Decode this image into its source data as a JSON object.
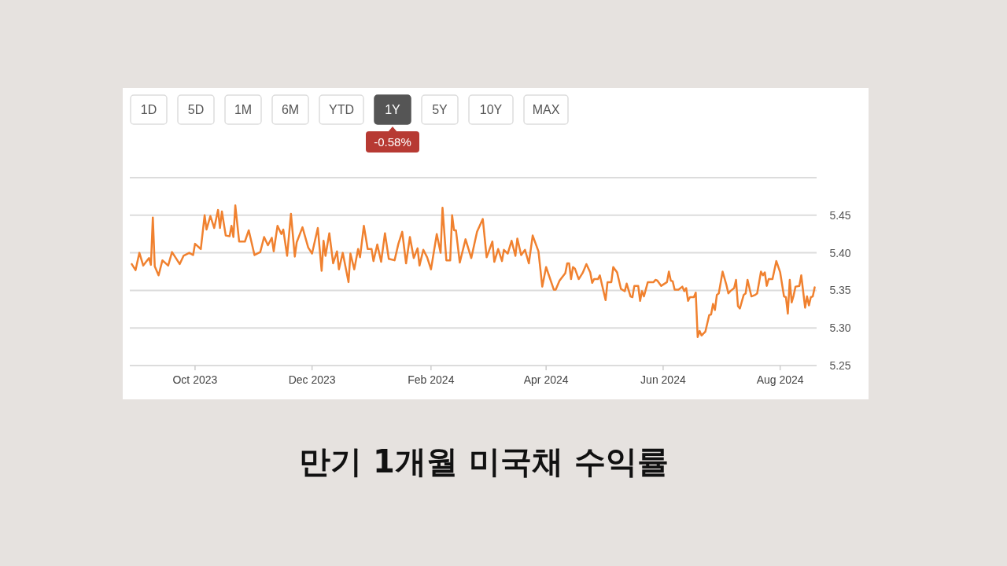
{
  "chart_data": {
    "type": "line",
    "title": "만기 1개월 미국채 수익률",
    "annotations": [
      "1D",
      "5D",
      "1M",
      "6M",
      "YTD",
      "1Y",
      "5Y",
      "10Y",
      "MAX",
      "-0.58%"
    ],
    "x": [
      "2023-08-29",
      "2023-08-31",
      "2023-09-02",
      "2023-09-04",
      "2023-09-07",
      "2023-09-08",
      "2023-09-09",
      "2023-09-10",
      "2023-09-12",
      "2023-09-14",
      "2023-09-17",
      "2023-09-19",
      "2023-09-23",
      "2023-09-25",
      "2023-09-28",
      "2023-09-30",
      "2023-10-01",
      "2023-10-04",
      "2023-10-06",
      "2023-10-07",
      "2023-10-09",
      "2023-10-11",
      "2023-10-13",
      "2023-10-14",
      "2023-10-15",
      "2023-10-17",
      "2023-10-19",
      "2023-10-20",
      "2023-10-21",
      "2023-10-22",
      "2023-10-24",
      "2023-10-27",
      "2023-10-29",
      "2023-11-01",
      "2023-11-04",
      "2023-11-06",
      "2023-11-08",
      "2023-11-10",
      "2023-11-11",
      "2023-11-13",
      "2023-11-15",
      "2023-11-16",
      "2023-11-18",
      "2023-11-20",
      "2023-11-22",
      "2023-11-23",
      "2023-11-26",
      "2023-11-29",
      "2023-12-01",
      "2023-12-04",
      "2023-12-06",
      "2023-12-07",
      "2023-12-08",
      "2023-12-10",
      "2023-12-12",
      "2023-12-14",
      "2023-12-15",
      "2023-12-17",
      "2023-12-20",
      "2023-12-21",
      "2023-12-23",
      "2023-12-25",
      "2023-12-26",
      "2023-12-28",
      "2023-12-30",
      "2024-01-01",
      "2024-01-02",
      "2024-01-04",
      "2024-01-06",
      "2024-01-08",
      "2024-01-10",
      "2024-01-13",
      "2024-01-15",
      "2024-01-17",
      "2024-01-19",
      "2024-01-21",
      "2024-01-23",
      "2024-01-25",
      "2024-01-26",
      "2024-01-28",
      "2024-01-30",
      "2024-02-01",
      "2024-02-04",
      "2024-02-06",
      "2024-02-07",
      "2024-02-09",
      "2024-02-11",
      "2024-02-12",
      "2024-02-13",
      "2024-02-14",
      "2024-02-16",
      "2024-02-19",
      "2024-02-22",
      "2024-02-25",
      "2024-02-28",
      "2024-03-01",
      "2024-03-04",
      "2024-03-05",
      "2024-03-07",
      "2024-03-09",
      "2024-03-10",
      "2024-03-12",
      "2024-03-14",
      "2024-03-16",
      "2024-03-17",
      "2024-03-19",
      "2024-03-21",
      "2024-03-23",
      "2024-03-25",
      "2024-03-28",
      "2024-03-30",
      "2024-04-01",
      "2024-04-05",
      "2024-04-06",
      "2024-04-08",
      "2024-04-11",
      "2024-04-12",
      "2024-04-13",
      "2024-04-14",
      "2024-04-15",
      "2024-04-16",
      "2024-04-18",
      "2024-04-20",
      "2024-04-22",
      "2024-04-24",
      "2024-04-25",
      "2024-04-26",
      "2024-04-28",
      "2024-04-29",
      "2024-05-02",
      "2024-05-03",
      "2024-05-05",
      "2024-05-06",
      "2024-05-08",
      "2024-05-10",
      "2024-05-12",
      "2024-05-13",
      "2024-05-15",
      "2024-05-16",
      "2024-05-17",
      "2024-05-19",
      "2024-05-20",
      "2024-05-21",
      "2024-05-22",
      "2024-05-24",
      "2024-05-27",
      "2024-05-28",
      "2024-05-29",
      "2024-05-31",
      "2024-06-03",
      "2024-06-04",
      "2024-06-05",
      "2024-06-06",
      "2024-06-07",
      "2024-06-09",
      "2024-06-11",
      "2024-06-12",
      "2024-06-13",
      "2024-06-14",
      "2024-06-15",
      "2024-06-17",
      "2024-06-18",
      "2024-06-19",
      "2024-06-20",
      "2024-06-21",
      "2024-06-23",
      "2024-06-25",
      "2024-06-26",
      "2024-06-27",
      "2024-06-28",
      "2024-06-29",
      "2024-06-30",
      "2024-07-02",
      "2024-07-04",
      "2024-07-05",
      "2024-07-06",
      "2024-07-08",
      "2024-07-09",
      "2024-07-10",
      "2024-07-11",
      "2024-07-13",
      "2024-07-14",
      "2024-07-15",
      "2024-07-17",
      "2024-07-19",
      "2024-07-20",
      "2024-07-22",
      "2024-07-23",
      "2024-07-24",
      "2024-07-25",
      "2024-07-26",
      "2024-07-28",
      "2024-07-30",
      "2024-08-01",
      "2024-08-03",
      "2024-08-04",
      "2024-08-05",
      "2024-08-06",
      "2024-08-07",
      "2024-08-08",
      "2024-08-09",
      "2024-08-11",
      "2024-08-12",
      "2024-08-14",
      "2024-08-15",
      "2024-08-16",
      "2024-08-17",
      "2024-08-18",
      "2024-08-19"
    ],
    "series": [
      {
        "color": "#f0812f",
        "values": [
          5.385,
          5.377,
          5.4,
          5.383,
          5.393,
          5.384,
          5.447,
          5.382,
          5.37,
          5.39,
          5.383,
          5.401,
          5.385,
          5.396,
          5.4,
          5.397,
          5.412,
          5.405,
          5.45,
          5.431,
          5.449,
          5.433,
          5.457,
          5.433,
          5.455,
          5.423,
          5.422,
          5.436,
          5.421,
          5.463,
          5.415,
          5.415,
          5.43,
          5.397,
          5.401,
          5.421,
          5.41,
          5.42,
          5.402,
          5.436,
          5.425,
          5.431,
          5.396,
          5.452,
          5.395,
          5.414,
          5.434,
          5.407,
          5.399,
          5.433,
          5.376,
          5.416,
          5.396,
          5.426,
          5.386,
          5.402,
          5.378,
          5.4,
          5.361,
          5.399,
          5.378,
          5.405,
          5.394,
          5.436,
          5.405,
          5.405,
          5.389,
          5.411,
          5.388,
          5.426,
          5.392,
          5.39,
          5.412,
          5.428,
          5.386,
          5.421,
          5.393,
          5.406,
          5.383,
          5.404,
          5.394,
          5.378,
          5.425,
          5.4,
          5.46,
          5.39,
          5.39,
          5.45,
          5.43,
          5.43,
          5.387,
          5.418,
          5.393,
          5.428,
          5.445,
          5.394,
          5.415,
          5.388,
          5.405,
          5.389,
          5.404,
          5.399,
          5.416,
          5.396,
          5.419,
          5.397,
          5.404,
          5.386,
          5.423,
          5.402,
          5.355,
          5.381,
          5.351,
          5.351,
          5.363,
          5.373,
          5.386,
          5.386,
          5.365,
          5.381,
          5.379,
          5.365,
          5.373,
          5.385,
          5.374,
          5.36,
          5.365,
          5.365,
          5.37,
          5.337,
          5.361,
          5.361,
          5.381,
          5.374,
          5.352,
          5.349,
          5.359,
          5.342,
          5.341,
          5.356,
          5.356,
          5.336,
          5.349,
          5.342,
          5.361,
          5.361,
          5.364,
          5.363,
          5.356,
          5.361,
          5.375,
          5.363,
          5.362,
          5.351,
          5.351,
          5.355,
          5.349,
          5.353,
          5.336,
          5.341,
          5.341,
          5.347,
          5.288,
          5.296,
          5.29,
          5.295,
          5.317,
          5.318,
          5.332,
          5.324,
          5.344,
          5.346,
          5.375,
          5.357,
          5.346,
          5.349,
          5.353,
          5.364,
          5.329,
          5.326,
          5.344,
          5.346,
          5.364,
          5.342,
          5.344,
          5.346,
          5.375,
          5.37,
          5.374,
          5.356,
          5.365,
          5.365,
          5.389,
          5.374,
          5.342,
          5.341,
          5.319,
          5.364,
          5.334,
          5.343,
          5.355,
          5.356,
          5.37,
          5.327,
          5.342,
          5.33,
          5.341,
          5.342,
          5.354
        ]
      }
    ],
    "xlim": [
      "2023-08-28",
      "2024-08-20"
    ],
    "xticks": [
      {
        "value": "2023-10-01",
        "label": "Oct 2023"
      },
      {
        "value": "2023-12-01",
        "label": "Dec 2023"
      },
      {
        "value": "2024-02-01",
        "label": "Feb 2024"
      },
      {
        "value": "2024-04-01",
        "label": "Apr 2024"
      },
      {
        "value": "2024-06-01",
        "label": "Jun 2024"
      },
      {
        "value": "2024-08-01",
        "label": "Aug 2024"
      }
    ],
    "ylim": [
      5.25,
      5.5
    ],
    "yticks": [
      {
        "value": 5.25,
        "label": "5.25"
      },
      {
        "value": 5.3,
        "label": "5.30"
      },
      {
        "value": 5.35,
        "label": "5.35"
      },
      {
        "value": 5.4,
        "label": "5.40"
      },
      {
        "value": 5.45,
        "label": "5.45"
      },
      {
        "value": 5.5,
        "label": null
      }
    ],
    "grid": "y",
    "marker": "none",
    "line_style": "solid"
  }
}
